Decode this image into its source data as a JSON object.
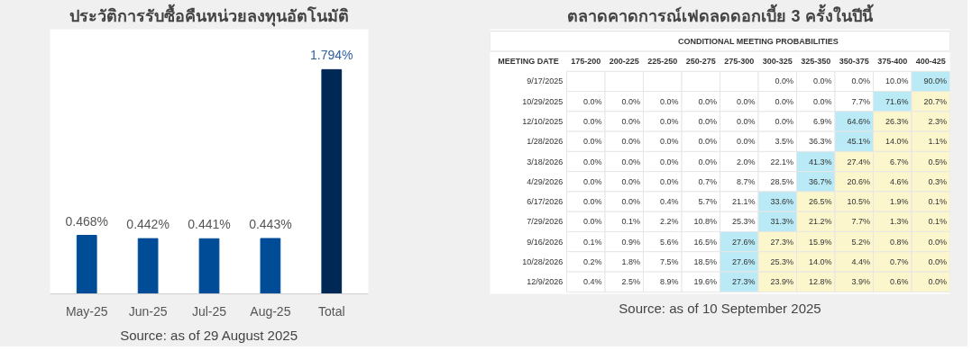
{
  "chart_data": [
    {
      "type": "bar",
      "title": "ประวัติการรับซื้อคืนหน่วยลงทุนอัตโนมัติ",
      "categories": [
        "May-25",
        "Jun-25",
        "Jul-25",
        "Aug-25",
        "Total"
      ],
      "values": [
        0.468,
        0.442,
        0.441,
        0.443,
        1.794
      ],
      "value_labels": [
        "0.468%",
        "0.442%",
        "0.441%",
        "0.443%",
        "1.794%"
      ],
      "colors": [
        "#004c97",
        "#004c97",
        "#004c97",
        "#004c97",
        "#002855"
      ],
      "annotations": [
        "Source: as of 29 August 2025"
      ]
    },
    {
      "type": "heatmap",
      "title": "ตลาดคาดการณ์เฟดลดดอกเบี้ย 3 ครั้งในปีนี้",
      "subtitle": "CONDITIONAL MEETING PROBABILITIES",
      "ylabel": "MEETING DATE",
      "categories": [
        "175-200",
        "200-225",
        "225-250",
        "250-275",
        "275-300",
        "300-325",
        "325-350",
        "350-375",
        "375-400",
        "400-425"
      ],
      "y_categories": [
        "9/17/2025",
        "10/29/2025",
        "12/10/2025",
        "1/28/2026",
        "3/18/2026",
        "4/29/2026",
        "6/17/2026",
        "7/29/2026",
        "9/16/2026",
        "10/28/2026",
        "12/9/2026"
      ],
      "cells": [
        [
          null,
          null,
          null,
          null,
          null,
          0.0,
          0.0,
          0.0,
          10.0,
          90.0
        ],
        [
          0.0,
          0.0,
          0.0,
          0.0,
          0.0,
          0.0,
          0.0,
          7.7,
          71.6,
          20.7
        ],
        [
          0.0,
          0.0,
          0.0,
          0.0,
          0.0,
          0.0,
          6.9,
          64.6,
          26.3,
          2.3
        ],
        [
          0.0,
          0.0,
          0.0,
          0.0,
          0.0,
          3.5,
          36.3,
          45.1,
          14.0,
          1.1
        ],
        [
          0.0,
          0.0,
          0.0,
          0.0,
          2.0,
          22.1,
          41.3,
          27.4,
          6.7,
          0.5
        ],
        [
          0.0,
          0.0,
          0.0,
          0.7,
          8.7,
          28.5,
          36.7,
          20.6,
          4.6,
          0.3
        ],
        [
          0.0,
          0.0,
          0.4,
          5.7,
          21.1,
          33.6,
          26.5,
          10.5,
          1.9,
          0.1
        ],
        [
          0.0,
          0.1,
          2.2,
          10.8,
          25.3,
          31.3,
          21.2,
          7.7,
          1.3,
          0.1
        ],
        [
          0.1,
          0.9,
          5.6,
          16.5,
          27.6,
          27.3,
          15.9,
          5.2,
          0.8,
          0.0
        ],
        [
          0.2,
          1.8,
          7.5,
          18.5,
          27.6,
          25.3,
          14.0,
          4.4,
          0.7,
          0.0
        ],
        [
          0.4,
          2.5,
          8.9,
          19.6,
          27.3,
          23.9,
          12.8,
          3.9,
          0.6,
          0.0
        ]
      ],
      "cell_labels": [
        [
          null,
          null,
          null,
          null,
          null,
          "0.0%",
          "0.0%",
          "0.0%",
          "10.0%",
          "90.0%"
        ],
        [
          "0.0%",
          "0.0%",
          "0.0%",
          "0.0%",
          "0.0%",
          "0.0%",
          "0.0%",
          "7.7%",
          "71.6%",
          "20.7%"
        ],
        [
          "0.0%",
          "0.0%",
          "0.0%",
          "0.0%",
          "0.0%",
          "0.0%",
          "6.9%",
          "64.6%",
          "26.3%",
          "2.3%"
        ],
        [
          "0.0%",
          "0.0%",
          "0.0%",
          "0.0%",
          "0.0%",
          "3.5%",
          "36.3%",
          "45.1%",
          "14.0%",
          "1.1%"
        ],
        [
          "0.0%",
          "0.0%",
          "0.0%",
          "0.0%",
          "2.0%",
          "22.1%",
          "41.3%",
          "27.4%",
          "6.7%",
          "0.5%"
        ],
        [
          "0.0%",
          "0.0%",
          "0.0%",
          "0.7%",
          "8.7%",
          "28.5%",
          "36.7%",
          "20.6%",
          "4.6%",
          "0.3%"
        ],
        [
          "0.0%",
          "0.0%",
          "0.4%",
          "5.7%",
          "21.1%",
          "33.6%",
          "26.5%",
          "10.5%",
          "1.9%",
          "0.1%"
        ],
        [
          "0.0%",
          "0.1%",
          "2.2%",
          "10.8%",
          "25.3%",
          "31.3%",
          "21.2%",
          "7.7%",
          "1.3%",
          "0.1%"
        ],
        [
          "0.1%",
          "0.9%",
          "5.6%",
          "16.5%",
          "27.6%",
          "27.3%",
          "15.9%",
          "5.2%",
          "0.8%",
          "0.0%"
        ],
        [
          "0.2%",
          "1.8%",
          "7.5%",
          "18.5%",
          "27.6%",
          "25.3%",
          "14.0%",
          "4.4%",
          "0.7%",
          "0.0%"
        ],
        [
          "0.4%",
          "2.5%",
          "8.9%",
          "19.6%",
          "27.3%",
          "23.9%",
          "12.8%",
          "3.9%",
          "0.6%",
          "0.0%"
        ]
      ],
      "colors": [
        "#ffffff",
        "#b9eaf5",
        "#fbf6cc"
      ],
      "annotations": [
        "Source: as of 10 September 2025"
      ]
    }
  ]
}
